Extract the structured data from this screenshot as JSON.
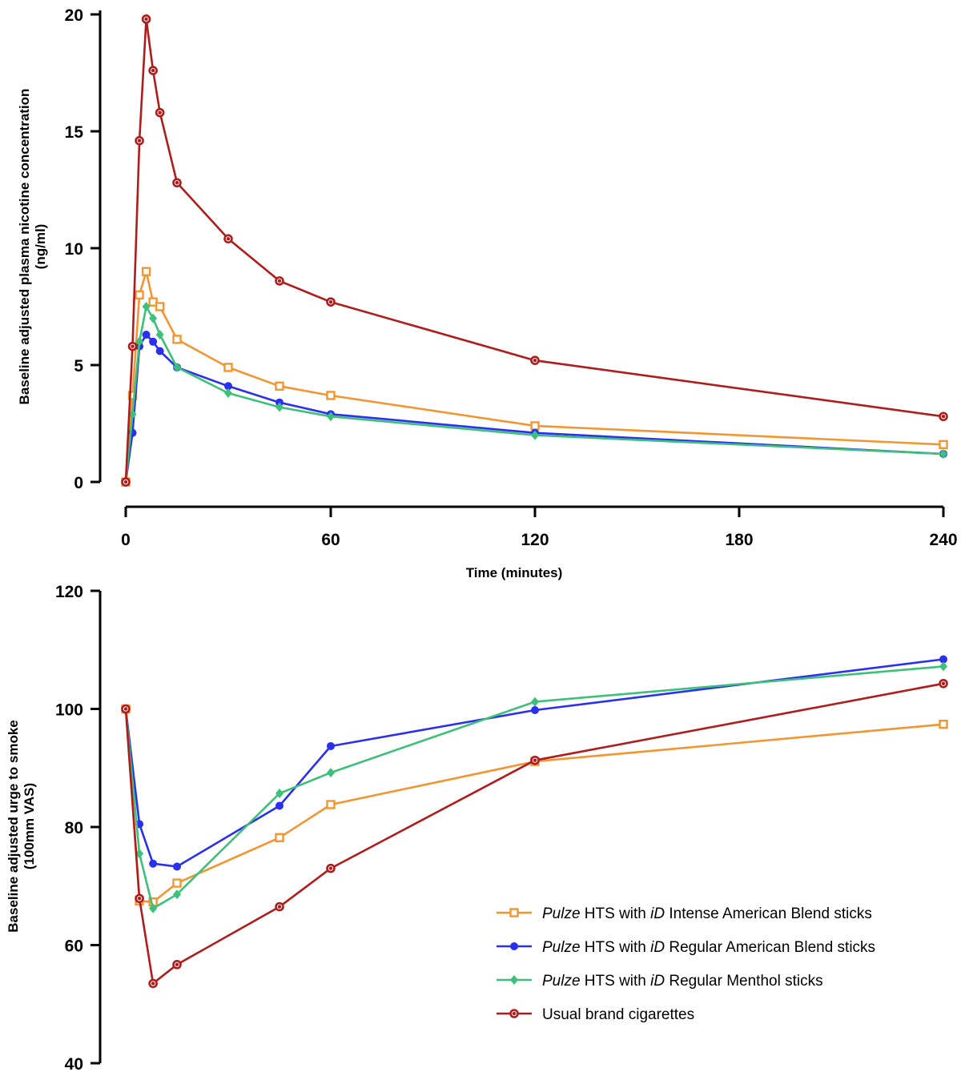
{
  "legend": [
    {
      "italic1": "Pulze",
      "text1": " HTS with ",
      "italic2": "iD",
      "text2": " Intense American Blend sticks"
    },
    {
      "italic1": "Pulze",
      "text1": " HTS with ",
      "italic2": "iD",
      "text2": " Regular American Blend sticks"
    },
    {
      "italic1": "Pulze",
      "text1": " HTS with ",
      "italic2": "iD",
      "text2": " Regular Menthol sticks"
    },
    {
      "italic1": "",
      "text1": "Usual brand cigarettes",
      "italic2": "",
      "text2": ""
    }
  ],
  "colors": {
    "intense": "#f39530",
    "regular": "#2a2ff0",
    "menthol": "#3cc07a",
    "cigarettes": "#b01c1c"
  },
  "chart_data": [
    {
      "type": "line",
      "ylabel_line1": "Baseline adjusted plasma nicotine concentration",
      "ylabel_line2": "(ng/ml)",
      "xlabel": "Time (minutes)",
      "ylim": [
        0,
        20
      ],
      "yticks": [
        "0",
        "5",
        "10",
        "15",
        "20"
      ],
      "xticks": [
        "0",
        "60",
        "120",
        "180",
        "240"
      ],
      "x_scale": "piecewise: 0-60 min expanded, 60-240 min compressed",
      "series": [
        {
          "key": "intense",
          "marker": "open-square",
          "points": [
            [
              0,
              0
            ],
            [
              2,
              3.7
            ],
            [
              4,
              8.0
            ],
            [
              6,
              9.0
            ],
            [
              8,
              7.7
            ],
            [
              10,
              7.5
            ],
            [
              15,
              6.1
            ],
            [
              30,
              4.9
            ],
            [
              45,
              4.1
            ],
            [
              60,
              3.7
            ],
            [
              120,
              2.4
            ],
            [
              240,
              1.6
            ]
          ]
        },
        {
          "key": "regular",
          "marker": "circle",
          "points": [
            [
              0,
              0
            ],
            [
              2,
              2.1
            ],
            [
              4,
              5.8
            ],
            [
              6,
              6.3
            ],
            [
              8,
              6.0
            ],
            [
              10,
              5.6
            ],
            [
              15,
              4.9
            ],
            [
              30,
              4.1
            ],
            [
              45,
              3.4
            ],
            [
              60,
              2.9
            ],
            [
              120,
              2.1
            ],
            [
              240,
              1.2
            ]
          ]
        },
        {
          "key": "menthol",
          "marker": "diamond",
          "points": [
            [
              0,
              0
            ],
            [
              2,
              2.9
            ],
            [
              4,
              6.0
            ],
            [
              6,
              7.5
            ],
            [
              8,
              7.0
            ],
            [
              10,
              6.3
            ],
            [
              15,
              4.9
            ],
            [
              30,
              3.8
            ],
            [
              45,
              3.2
            ],
            [
              60,
              2.8
            ],
            [
              120,
              2.0
            ],
            [
              240,
              1.2
            ]
          ]
        },
        {
          "key": "cigarettes",
          "marker": "circle-open",
          "points": [
            [
              0,
              0
            ],
            [
              2,
              5.8
            ],
            [
              4,
              14.6
            ],
            [
              6,
              19.8
            ],
            [
              8,
              17.6
            ],
            [
              10,
              15.8
            ],
            [
              15,
              12.8
            ],
            [
              30,
              10.4
            ],
            [
              45,
              8.6
            ],
            [
              60,
              7.7
            ],
            [
              120,
              5.2
            ],
            [
              240,
              2.8
            ]
          ]
        }
      ]
    },
    {
      "type": "line",
      "ylabel_line1": "Baseline adjusted urge to smoke",
      "ylabel_line2": "(100mm VAS)",
      "xlabel": "",
      "ylim": [
        40,
        120
      ],
      "yticks": [
        "40",
        "60",
        "80",
        "100",
        "120"
      ],
      "x_scale": "same as top panel",
      "series": [
        {
          "key": "intense",
          "marker": "open-square",
          "points": [
            [
              0,
              100
            ],
            [
              4,
              67.5
            ],
            [
              8,
              67.3
            ],
            [
              15,
              70.5
            ],
            [
              45,
              78.2
            ],
            [
              60,
              83.8
            ],
            [
              120,
              91.1
            ],
            [
              240,
              97.4
            ]
          ]
        },
        {
          "key": "regular",
          "marker": "circle",
          "points": [
            [
              0,
              100
            ],
            [
              4,
              80.5
            ],
            [
              8,
              73.8
            ],
            [
              15,
              73.3
            ],
            [
              45,
              83.6
            ],
            [
              60,
              93.7
            ],
            [
              120,
              99.8
            ],
            [
              240,
              108.4
            ]
          ]
        },
        {
          "key": "menthol",
          "marker": "diamond",
          "points": [
            [
              0,
              100
            ],
            [
              4,
              75.5
            ],
            [
              8,
              66.2
            ],
            [
              15,
              68.6
            ],
            [
              45,
              85.7
            ],
            [
              60,
              89.2
            ],
            [
              120,
              101.2
            ],
            [
              240,
              107.2
            ]
          ]
        },
        {
          "key": "cigarettes",
          "marker": "circle-open",
          "points": [
            [
              0,
              100
            ],
            [
              4,
              67.9
            ],
            [
              8,
              53.5
            ],
            [
              15,
              56.7
            ],
            [
              45,
              66.5
            ],
            [
              60,
              73.0
            ],
            [
              120,
              91.3
            ],
            [
              240,
              104.3
            ]
          ]
        }
      ]
    }
  ]
}
